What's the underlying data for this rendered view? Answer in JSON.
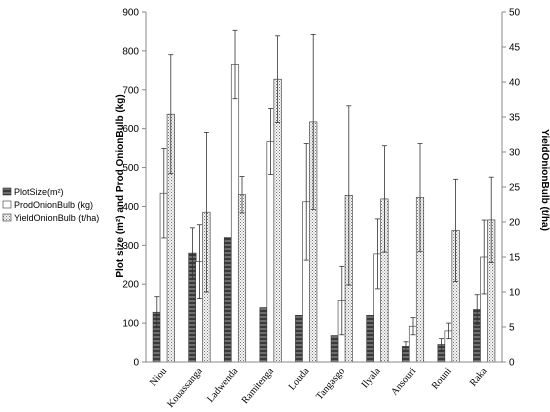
{
  "chart_data": {
    "type": "bar",
    "categories": [
      "Niou",
      "Kouassanga",
      "Ladwenda",
      "Ramitenga",
      "Louda",
      "Tangasgo",
      "Ilyala",
      "Ansouri",
      "Rouni",
      "Raka"
    ],
    "series": [
      {
        "name": "PlotSize(m²)",
        "axis": "left",
        "pattern": "dark-horizontal-stripes",
        "values": [
          128,
          280,
          320,
          140,
          120,
          68,
          120,
          40,
          45,
          135
        ],
        "error": [
          40,
          65,
          0,
          0,
          0,
          0,
          0,
          12,
          15,
          38
        ]
      },
      {
        "name": "ProdOnionBulb (kg)",
        "axis": "left",
        "pattern": "white",
        "values": [
          434,
          258,
          765,
          567,
          412,
          158,
          278,
          92,
          80,
          270
        ],
        "error": [
          115,
          95,
          88,
          85,
          150,
          88,
          90,
          22,
          20,
          95
        ]
      },
      {
        "name": "YieldOnionBulb (t/ha)",
        "axis": "right",
        "pattern": "dotted",
        "values": [
          35.4,
          21.4,
          23.9,
          40.4,
          34.3,
          23.8,
          23.3,
          23.5,
          18.8,
          20.3
        ],
        "error": [
          8.5,
          11.4,
          2.6,
          6.2,
          12.5,
          12.8,
          7.6,
          7.7,
          7.3,
          6.1
        ]
      }
    ],
    "ylabel": "Plot size (m²) and Prod OnionBulb  (kg)",
    "y2label": "YieldOnionBulb (t/ha)",
    "ylim": [
      0,
      900
    ],
    "y2lim": [
      0,
      50
    ],
    "yticks": [
      "0",
      "100",
      "200",
      "300",
      "400",
      "500",
      "600",
      "700",
      "800",
      "900"
    ],
    "y2ticks": [
      "0",
      "5",
      "10",
      "15",
      "20",
      "25",
      "30",
      "35",
      "40",
      "45",
      "50"
    ],
    "grid": false,
    "legend_position": "left",
    "legend": [
      "PlotSize(m²)",
      "ProdOnionBulb (kg)",
      "YieldOnionBulb (t/ha)"
    ],
    "colors": {
      "plot_size": "#555555",
      "prod": "#ffffff",
      "yield": "#cccccc",
      "axis": "#888888"
    }
  }
}
